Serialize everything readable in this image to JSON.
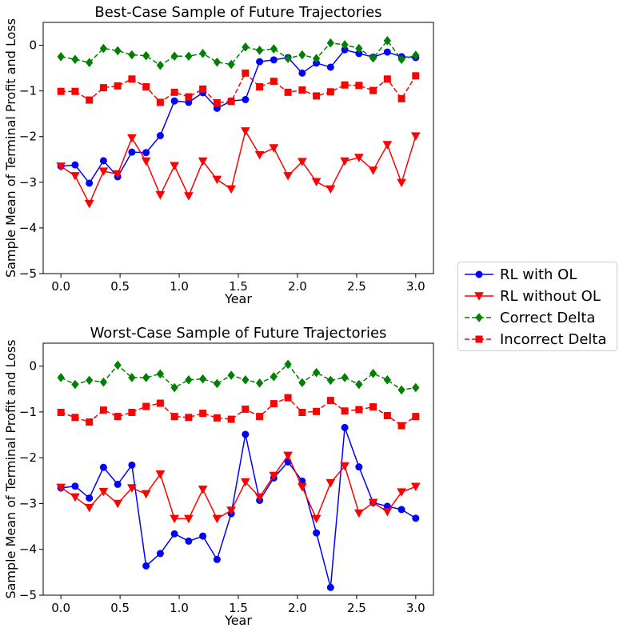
{
  "colors": {
    "rl_ol": "#0000ff",
    "rl_no_ol": "#ff0000",
    "correct": "#008000",
    "incorrect": "#ff0000"
  },
  "legend": {
    "placement": "right, between subplots",
    "entries": [
      {
        "label": "RL with OL",
        "color": "#0000ff",
        "marker": "circle",
        "dash": "solid"
      },
      {
        "label": "RL without OL",
        "color": "#ff0000",
        "marker": "triangle-down",
        "dash": "solid"
      },
      {
        "label": "Correct Delta",
        "color": "#008000",
        "marker": "diamond",
        "dash": "dashed"
      },
      {
        "label": "Incorrect Delta",
        "color": "#ff0000",
        "marker": "square",
        "dash": "dashed"
      }
    ]
  },
  "chart_data": [
    {
      "type": "line",
      "title": "Best-Case Sample of Future Trajectories",
      "xlabel": "Year",
      "ylabel": "Sample Mean of Terminal Profit and Loss",
      "xlim": [
        -0.15,
        3.15
      ],
      "ylim": [
        -5,
        0.5
      ],
      "xticks": [
        "0.0",
        "0.5",
        "1.0",
        "1.5",
        "2.0",
        "2.5",
        "3.0"
      ],
      "yticks": [
        "0",
        "−1",
        "−2",
        "−3",
        "−4",
        "−5"
      ],
      "grid": false,
      "x": [
        0,
        0.12,
        0.24,
        0.36,
        0.48,
        0.6,
        0.72,
        0.84,
        0.96,
        1.08,
        1.2,
        1.32,
        1.44,
        1.56,
        1.68,
        1.8,
        1.92,
        2.04,
        2.16,
        2.28,
        2.4,
        2.52,
        2.64,
        2.76,
        2.88,
        3.0
      ],
      "series": [
        {
          "name": "RL with OL",
          "values": [
            -2.65,
            -2.62,
            -3.02,
            -2.53,
            -2.88,
            -2.34,
            -2.35,
            -1.98,
            -1.22,
            -1.25,
            -1.04,
            -1.38,
            -1.22,
            -1.19,
            -0.36,
            -0.32,
            -0.27,
            -0.61,
            -0.39,
            -0.48,
            -0.1,
            -0.18,
            -0.26,
            -0.15,
            -0.25,
            -0.27
          ]
        },
        {
          "name": "RL without OL",
          "values": [
            -2.65,
            -2.86,
            -3.47,
            -2.76,
            -2.82,
            -2.03,
            -2.54,
            -3.28,
            -2.64,
            -3.3,
            -2.54,
            -2.94,
            -3.15,
            -1.88,
            -2.4,
            -2.25,
            -2.86,
            -2.55,
            -2.99,
            -3.15,
            -2.54,
            -2.46,
            -2.74,
            -2.18,
            -3.01,
            -1.99
          ]
        },
        {
          "name": "Correct Delta",
          "values": [
            -0.25,
            -0.31,
            -0.38,
            -0.07,
            -0.12,
            -0.21,
            -0.23,
            -0.44,
            -0.24,
            -0.24,
            -0.18,
            -0.37,
            -0.42,
            -0.04,
            -0.11,
            -0.08,
            -0.29,
            -0.21,
            -0.29,
            0.05,
            0.01,
            -0.07,
            -0.28,
            0.1,
            -0.31,
            -0.22
          ]
        },
        {
          "name": "Incorrect Delta",
          "values": [
            -1.01,
            -1.01,
            -1.2,
            -0.93,
            -0.89,
            -0.74,
            -0.91,
            -1.25,
            -1.03,
            -1.13,
            -0.96,
            -1.26,
            -1.23,
            -0.61,
            -0.91,
            -0.79,
            -1.03,
            -0.98,
            -1.11,
            -1.02,
            -0.87,
            -0.88,
            -0.99,
            -0.74,
            -1.17,
            -0.67
          ]
        }
      ]
    },
    {
      "type": "line",
      "title": "Worst-Case Sample of Future Trajectories",
      "xlabel": "Year",
      "ylabel": "Sample Mean of Terminal Profit and Loss",
      "xlim": [
        -0.15,
        3.15
      ],
      "ylim": [
        -5,
        0.5
      ],
      "xticks": [
        "0.0",
        "0.5",
        "1.0",
        "1.5",
        "2.0",
        "2.5",
        "3.0"
      ],
      "yticks": [
        "0",
        "−1",
        "−2",
        "−3",
        "−4",
        "−5"
      ],
      "grid": false,
      "x": [
        0,
        0.12,
        0.24,
        0.36,
        0.48,
        0.6,
        0.72,
        0.84,
        0.96,
        1.08,
        1.2,
        1.32,
        1.44,
        1.56,
        1.68,
        1.8,
        1.92,
        2.04,
        2.16,
        2.28,
        2.4,
        2.52,
        2.64,
        2.76,
        2.88,
        3.0
      ],
      "series": [
        {
          "name": "RL with OL",
          "values": [
            -2.66,
            -2.62,
            -2.88,
            -2.21,
            -2.58,
            -2.16,
            -4.36,
            -4.09,
            -3.66,
            -3.82,
            -3.71,
            -4.22,
            -3.22,
            -1.49,
            -2.93,
            -2.44,
            -2.09,
            -2.51,
            -3.64,
            -4.83,
            -1.34,
            -2.2,
            -2.98,
            -3.06,
            -3.13,
            -3.32
          ]
        },
        {
          "name": "RL without OL",
          "values": [
            -2.65,
            -2.86,
            -3.09,
            -2.74,
            -3.0,
            -2.66,
            -2.79,
            -2.36,
            -3.33,
            -3.33,
            -2.69,
            -3.33,
            -3.15,
            -2.53,
            -2.86,
            -2.39,
            -1.95,
            -2.64,
            -3.33,
            -2.55,
            -2.18,
            -3.21,
            -2.98,
            -3.18,
            -2.75,
            -2.63
          ]
        },
        {
          "name": "Correct Delta",
          "values": [
            -0.25,
            -0.4,
            -0.31,
            -0.35,
            0.02,
            -0.25,
            -0.25,
            -0.17,
            -0.47,
            -0.3,
            -0.28,
            -0.38,
            -0.2,
            -0.3,
            -0.37,
            -0.23,
            0.04,
            -0.36,
            -0.14,
            -0.31,
            -0.25,
            -0.4,
            -0.16,
            -0.3,
            -0.52,
            -0.47
          ]
        },
        {
          "name": "Incorrect Delta",
          "values": [
            -1.01,
            -1.12,
            -1.22,
            -0.96,
            -1.1,
            -1.01,
            -0.88,
            -0.81,
            -1.1,
            -1.12,
            -1.03,
            -1.13,
            -1.16,
            -0.94,
            -1.1,
            -0.82,
            -0.69,
            -1.01,
            -0.99,
            -0.75,
            -0.98,
            -0.95,
            -0.89,
            -1.08,
            -1.3,
            -1.1
          ]
        }
      ]
    }
  ]
}
